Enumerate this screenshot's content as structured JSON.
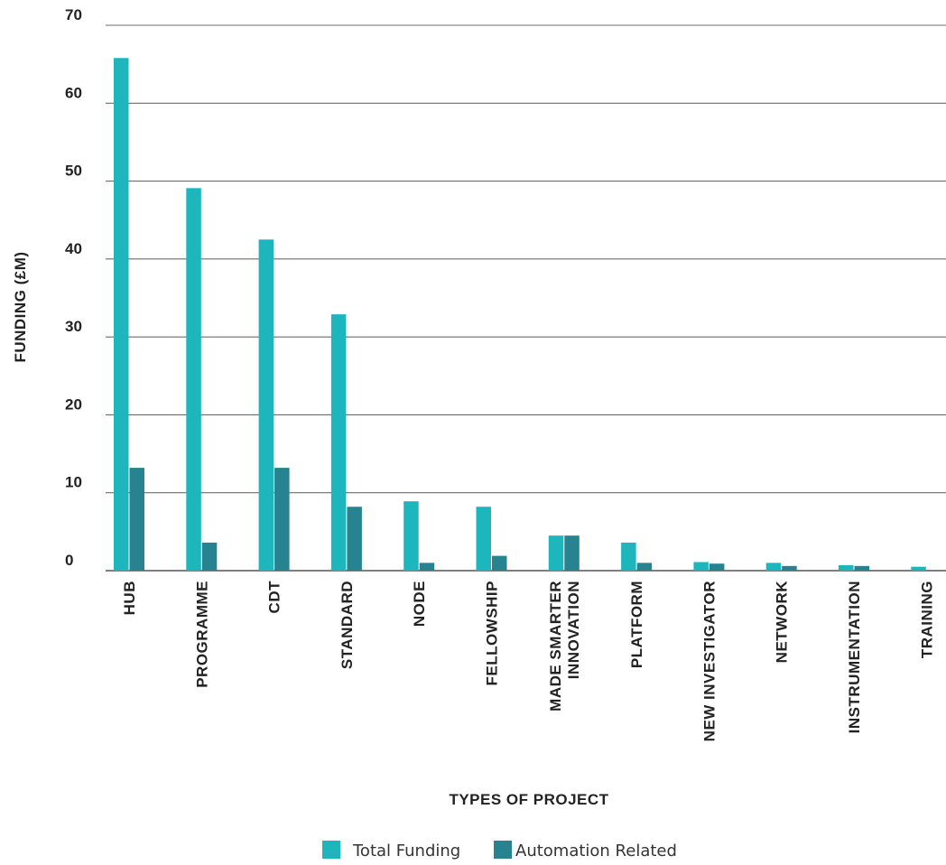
{
  "chart_data": {
    "type": "bar",
    "title": "",
    "xlabel": "TYPES OF PROJECT",
    "ylabel": "FUNDING (£M)",
    "ylim": [
      0,
      70
    ],
    "yticks": [
      0,
      10,
      20,
      30,
      40,
      50,
      60,
      70
    ],
    "grid": "horizontal",
    "legend_position": "bottom",
    "categories": [
      [
        "HUB"
      ],
      [
        "PROGRAMME"
      ],
      [
        "CDT"
      ],
      [
        "STANDARD"
      ],
      [
        "NODE"
      ],
      [
        "FELLOWSHIP"
      ],
      [
        "MADE SMARTER",
        "INNOVATION"
      ],
      [
        "PLATFORM"
      ],
      [
        "NEW INVESTIGATOR"
      ],
      [
        "NETWORK"
      ],
      [
        "INSTRUMENTATION"
      ],
      [
        "TRAINING"
      ]
    ],
    "series": [
      {
        "name": "Total Funding",
        "color": "#1eb6bd",
        "values": [
          65.8,
          49.1,
          42.5,
          32.9,
          8.9,
          8.2,
          4.5,
          3.6,
          1.1,
          1.0,
          0.7,
          0.5
        ]
      },
      {
        "name": "Automation Related",
        "color": "#26838f",
        "values": [
          13.2,
          3.6,
          13.2,
          8.2,
          1.0,
          1.9,
          4.5,
          1.0,
          0.9,
          0.6,
          0.6,
          0.0
        ]
      }
    ]
  }
}
